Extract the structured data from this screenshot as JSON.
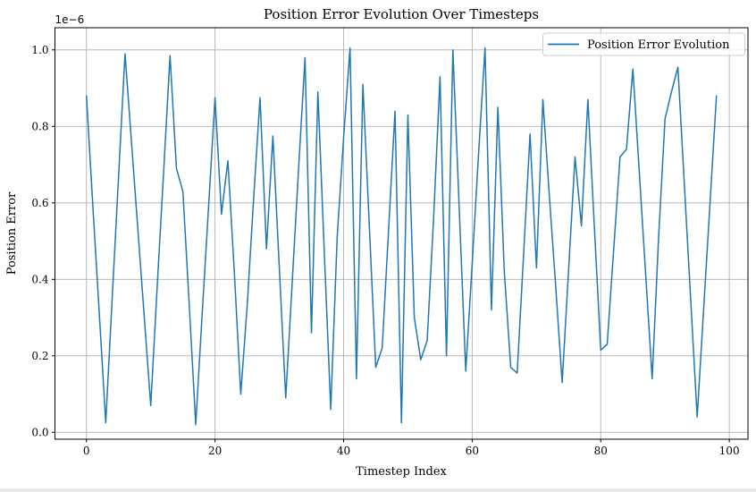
{
  "figure": {
    "title": "Position Error Evolution Over Timesteps",
    "xlabel": "Timestep Index",
    "ylabel": "Position Error",
    "y_offset_label": "1e−6",
    "legend_label": "Position Error Evolution",
    "colors": {
      "line": "#1f77b4",
      "grid": "#b0b0b0",
      "spine": "#000000",
      "legend_border": "#cccccc",
      "background": "#ffffff"
    }
  },
  "chart_data": {
    "type": "line",
    "title": "Position Error Evolution Over Timesteps",
    "xlabel": "Timestep Index",
    "ylabel": "Position Error",
    "legend": [
      "Position Error Evolution"
    ],
    "legend_position": "upper right",
    "grid": true,
    "y_unit_multiplier": "1e-6",
    "x_start": 0,
    "x_step": 1,
    "n_points": 99,
    "values": [
      0.88,
      0.59,
      0.31,
      0.025,
      0.35,
      0.67,
      0.99,
      0.76,
      0.53,
      0.3,
      0.07,
      0.38,
      0.68,
      0.985,
      0.69,
      0.63,
      0.33,
      0.02,
      0.31,
      0.59,
      0.875,
      0.57,
      0.71,
      0.42,
      0.1,
      0.33,
      0.61,
      0.875,
      0.48,
      0.775,
      0.43,
      0.09,
      0.39,
      0.69,
      0.98,
      0.26,
      0.89,
      0.47,
      0.06,
      0.51,
      0.77,
      1.005,
      0.14,
      0.91,
      0.54,
      0.17,
      0.22,
      0.53,
      0.84,
      0.025,
      0.83,
      0.3,
      0.19,
      0.24,
      0.56,
      0.93,
      0.2,
      1.0,
      0.58,
      0.16,
      0.44,
      0.73,
      1.005,
      0.32,
      0.85,
      0.42,
      0.17,
      0.155,
      0.465,
      0.78,
      0.43,
      0.87,
      0.62,
      0.38,
      0.13,
      0.425,
      0.72,
      0.54,
      0.87,
      0.54,
      0.215,
      0.23,
      0.475,
      0.72,
      0.74,
      0.95,
      0.68,
      0.41,
      0.14,
      0.51,
      0.82,
      0.89,
      0.955,
      0.65,
      0.345,
      0.04,
      0.32,
      0.6,
      0.88
    ],
    "xlim": [
      -4.9,
      102.9
    ],
    "ylim": [
      -0.018,
      1.058
    ],
    "xticks": [
      0,
      20,
      40,
      60,
      80,
      100
    ],
    "yticks": [
      0.0,
      0.2,
      0.4,
      0.6,
      0.8,
      1.0
    ]
  }
}
